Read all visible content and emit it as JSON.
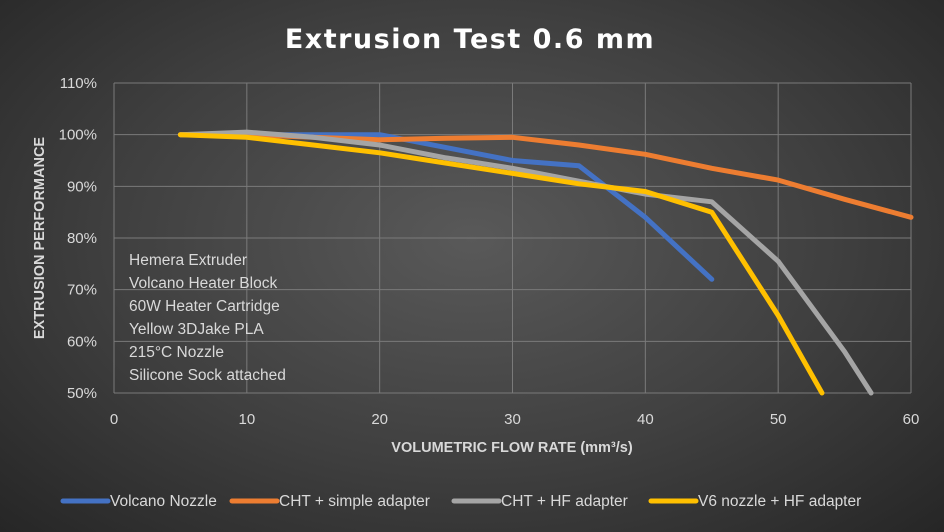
{
  "chart_data": {
    "type": "line",
    "title": "Extrusion Test 0.6 mm",
    "xlabel": "VOLUMETRIC FLOW RATE (mm³/s)",
    "ylabel": "EXTRUSION PERFORMANCE",
    "xlim": [
      0,
      60
    ],
    "ylim": [
      50,
      110
    ],
    "x_ticks": [
      0,
      10,
      20,
      30,
      40,
      50,
      60
    ],
    "y_ticks": [
      50,
      60,
      70,
      80,
      90,
      100,
      110
    ],
    "x_tick_labels": [
      "0",
      "10",
      "20",
      "30",
      "40",
      "50",
      "60"
    ],
    "y_tick_labels": [
      "50%",
      "60%",
      "70%",
      "80%",
      "90%",
      "100%",
      "110%"
    ],
    "grid": true,
    "legend_position": "bottom",
    "annotation_lines": [
      "Hemera Extruder",
      "Volcano Heater Block",
      "60W Heater Cartridge",
      "Yellow 3DJake PLA",
      "215°C Nozzle",
      "Silicone Sock attached"
    ],
    "series": [
      {
        "name": "Volcano Nozzle",
        "color": "#4472c4",
        "points": [
          [
            5,
            100
          ],
          [
            10,
            100
          ],
          [
            15,
            100
          ],
          [
            20,
            100
          ],
          [
            25,
            97.5
          ],
          [
            30,
            95
          ],
          [
            35,
            94
          ],
          [
            40,
            84
          ],
          [
            45,
            72
          ]
        ]
      },
      {
        "name": "CHT + simple adapter",
        "color": "#ed7d31",
        "points": [
          [
            5,
            100
          ],
          [
            10,
            100
          ],
          [
            15,
            99.5
          ],
          [
            20,
            99
          ],
          [
            25,
            99.3
          ],
          [
            30,
            99.5
          ],
          [
            35,
            98
          ],
          [
            40,
            96.2
          ],
          [
            45,
            93.5
          ],
          [
            50,
            91.2
          ],
          [
            55,
            87.5
          ],
          [
            60,
            84
          ]
        ]
      },
      {
        "name": "CHT + HF adapter",
        "color": "#a5a5a5",
        "points": [
          [
            5,
            100
          ],
          [
            10,
            100.5
          ],
          [
            15,
            99.5
          ],
          [
            20,
            98
          ],
          [
            25,
            95.5
          ],
          [
            30,
            93.5
          ],
          [
            35,
            91
          ],
          [
            40,
            88.5
          ],
          [
            45,
            87
          ],
          [
            50,
            75.5
          ],
          [
            55,
            58
          ],
          [
            57,
            50
          ]
        ]
      },
      {
        "name": "V6 nozzle + HF adapter",
        "color": "#ffc000",
        "points": [
          [
            5,
            100
          ],
          [
            10,
            99.5
          ],
          [
            15,
            98
          ],
          [
            20,
            96.5
          ],
          [
            25,
            94.5
          ],
          [
            30,
            92.5
          ],
          [
            35,
            90.5
          ],
          [
            40,
            89
          ],
          [
            45,
            85
          ],
          [
            50,
            65
          ],
          [
            53.3,
            50
          ]
        ]
      }
    ]
  }
}
